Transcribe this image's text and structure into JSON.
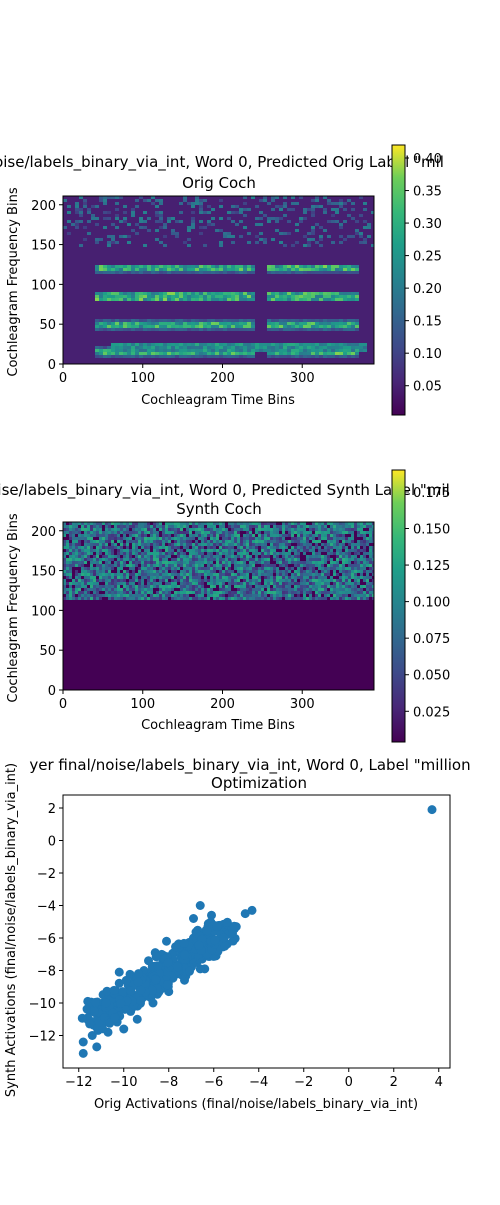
{
  "panels": {
    "orig": {
      "title_line1": "oise/labels_binary_via_int, Word 0, Predicted Orig Label \"mil",
      "title_line2": "Orig Coch",
      "xlabel": "Cochleagram Time Bins",
      "ylabel": "Cochleagram Frequency Bins",
      "xticks": [
        "0",
        "100",
        "200",
        "300"
      ],
      "yticks": [
        "0",
        "50",
        "100",
        "150",
        "200"
      ],
      "colorbar_ticks": [
        "0.05",
        "0.10",
        "0.15",
        "0.20",
        "0.25",
        "0.30",
        "0.35",
        "0.40"
      ]
    },
    "synth": {
      "title_line1": "oise/labels_binary_via_int, Word 0, Predicted Synth Label \"mil",
      "title_line2": "Synth Coch",
      "xlabel": "Cochleagram Time Bins",
      "ylabel": "Cochleagram Frequency Bins",
      "xticks": [
        "0",
        "100",
        "200",
        "300"
      ],
      "yticks": [
        "0",
        "50",
        "100",
        "150",
        "200"
      ],
      "colorbar_ticks": [
        "0.025",
        "0.050",
        "0.075",
        "0.100",
        "0.125",
        "0.150",
        "0.175"
      ]
    },
    "scatter": {
      "title_line1": "yer final/noise/labels_binary_via_int, Word 0, Label \"million",
      "title_line2": "Optimization",
      "xlabel": "Orig Activations (final/noise/labels_binary_via_int)",
      "ylabel": "Synth Activations (final/noise/labels_binary_via_int)",
      "xticks": [
        "−12",
        "−10",
        "−8",
        "−6",
        "−4",
        "−2",
        "0",
        "2",
        "4"
      ],
      "yticks": [
        "−12",
        "−10",
        "−8",
        "−6",
        "−4",
        "−2",
        "0",
        "2"
      ]
    }
  },
  "colors": {
    "viridis_low": "#440154",
    "viridis_high": "#fde725",
    "point": "#1f77b4"
  },
  "chart_data": [
    {
      "type": "heatmap",
      "title": "Orig Coch",
      "xlabel": "Cochleagram Time Bins",
      "ylabel": "Cochleagram Frequency Bins",
      "xlim": [
        0,
        390
      ],
      "ylim": [
        0,
        211
      ],
      "colormap": "viridis",
      "colorbar_range": [
        0.005,
        0.42
      ]
    },
    {
      "type": "heatmap",
      "title": "Synth Coch",
      "xlabel": "Cochleagram Time Bins",
      "ylabel": "Cochleagram Frequency Bins",
      "xlim": [
        0,
        390
      ],
      "ylim": [
        0,
        211
      ],
      "colormap": "viridis",
      "colorbar_range": [
        0.004,
        0.19
      ]
    },
    {
      "type": "scatter",
      "title": "Optimization",
      "xlabel": "Orig Activations (final/noise/labels_binary_via_int)",
      "ylabel": "Synth Activations (final/noise/labels_binary_via_int)",
      "xlim": [
        -12.7,
        4.5
      ],
      "ylim": [
        -14.0,
        2.8
      ],
      "points": [
        [
          3.7,
          1.9
        ],
        [
          -4.3,
          -4.3
        ],
        [
          -4.6,
          -4.5
        ],
        [
          -5.0,
          -5.3
        ],
        [
          -5.5,
          -5.4
        ],
        [
          -6.1,
          -4.6
        ],
        [
          -6.6,
          -4.0
        ],
        [
          -6.9,
          -4.8
        ],
        [
          -5.9,
          -7.1
        ],
        [
          -6.4,
          -7.9
        ],
        [
          -6.0,
          -6.6
        ],
        [
          -6.9,
          -6.0
        ],
        [
          -7.5,
          -6.5
        ],
        [
          -8.1,
          -6.2
        ],
        [
          -7.2,
          -7.3
        ],
        [
          -8.6,
          -6.9
        ],
        [
          -7.6,
          -8.2
        ],
        [
          -8.9,
          -7.4
        ],
        [
          -9.1,
          -8.0
        ],
        [
          -8.4,
          -8.7
        ],
        [
          -9.5,
          -8.5
        ],
        [
          -9.0,
          -9.4
        ],
        [
          -9.8,
          -8.9
        ],
        [
          -10.2,
          -8.1
        ],
        [
          -10.1,
          -9.6
        ],
        [
          -9.6,
          -10.1
        ],
        [
          -10.6,
          -9.4
        ],
        [
          -10.8,
          -10.2
        ],
        [
          -10.3,
          -10.8
        ],
        [
          -11.0,
          -10.9
        ],
        [
          -11.2,
          -11.5
        ],
        [
          -10.7,
          -11.8
        ],
        [
          -11.5,
          -10.5
        ],
        [
          -11.4,
          -12.0
        ],
        [
          -11.8,
          -12.4
        ],
        [
          -11.8,
          -13.1
        ],
        [
          -11.2,
          -12.7
        ],
        [
          -11.6,
          -9.9
        ],
        [
          -10.0,
          -11.6
        ],
        [
          -9.4,
          -11.0
        ],
        [
          -8.7,
          -10.0
        ],
        [
          -8.0,
          -9.3
        ],
        [
          -7.3,
          -8.6
        ],
        [
          -6.6,
          -7.9
        ],
        [
          -7.9,
          -7.5
        ],
        [
          -8.4,
          -8.0
        ],
        [
          -9.2,
          -9.0
        ],
        [
          -9.9,
          -9.9
        ],
        [
          -10.4,
          -10.4
        ],
        [
          -10.9,
          -11.2
        ],
        [
          -7.0,
          -7.0
        ],
        [
          -6.3,
          -5.9
        ],
        [
          -6.8,
          -6.9
        ],
        [
          -7.7,
          -7.8
        ],
        [
          -8.2,
          -7.1
        ],
        [
          -8.8,
          -8.3
        ],
        [
          -9.7,
          -9.2
        ],
        [
          -10.5,
          -10.0
        ]
      ]
    }
  ]
}
